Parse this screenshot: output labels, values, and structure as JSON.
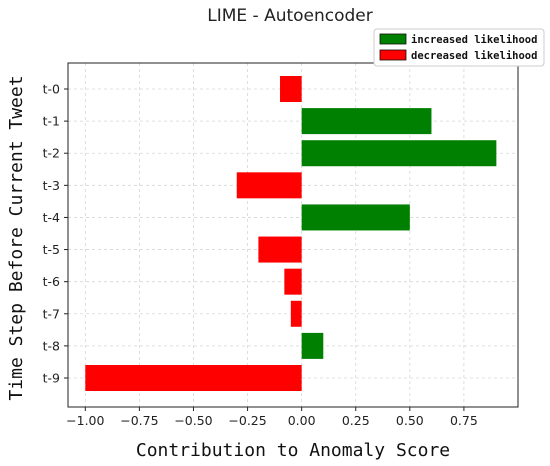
{
  "chart_data": {
    "type": "bar",
    "orientation": "horizontal",
    "title": "LIME - Autoencoder",
    "xlabel": "Contribution to Anomaly Score",
    "ylabel": "Time Step Before Current Tweet",
    "categories": [
      "t-0",
      "t-1",
      "t-2",
      "t-3",
      "t-4",
      "t-5",
      "t-6",
      "t-7",
      "t-8",
      "t-9"
    ],
    "values": [
      -0.1,
      0.6,
      0.9,
      -0.3,
      0.5,
      -0.2,
      -0.08,
      -0.05,
      0.1,
      -1.0
    ],
    "xlim": [
      -1.08,
      1.0
    ],
    "xticks": [
      -1.0,
      -0.75,
      -0.5,
      -0.25,
      0.0,
      0.25,
      0.5,
      0.75
    ],
    "xtick_labels": [
      "−1.00",
      "−0.75",
      "−0.50",
      "−0.25",
      "0.00",
      "0.25",
      "0.50",
      "0.75"
    ],
    "grid": true,
    "legend": {
      "placement": "top-right",
      "entries": [
        {
          "label": "increased likelihood",
          "color": "#008000"
        },
        {
          "label": "decreased likelihood",
          "color": "#ff0000"
        }
      ]
    },
    "colors": {
      "positive": "#008000",
      "negative": "#ff0000"
    }
  }
}
